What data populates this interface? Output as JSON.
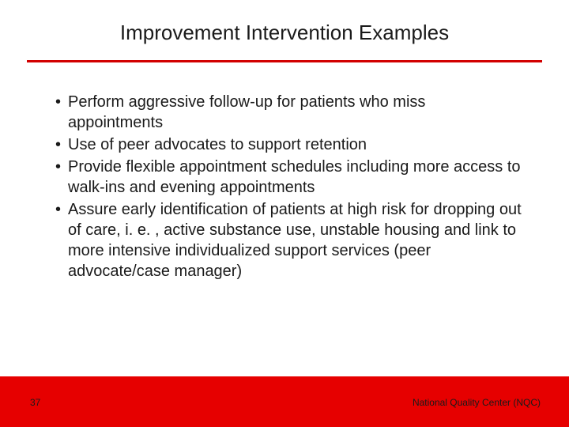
{
  "title": "Improvement Intervention Examples",
  "divider_color": "#d20000",
  "footer_bar_color": "#e60000",
  "background_color": "#ffffff",
  "text_color": "#1a1a1a",
  "title_fontsize": 26,
  "body_fontsize": 20,
  "footer_fontsize": 12,
  "bullets": [
    "Perform aggressive follow-up for patients who miss appointments",
    "Use of peer advocates to support retention",
    "Provide flexible appointment schedules including more access to walk-ins and evening appointments",
    "Assure early identification of patients at high risk for dropping out of care, i. e. , active substance use, unstable housing and link to more intensive individualized support services (peer advocate/case manager)"
  ],
  "page_number": "37",
  "footer_text": "National Quality Center (NQC)"
}
